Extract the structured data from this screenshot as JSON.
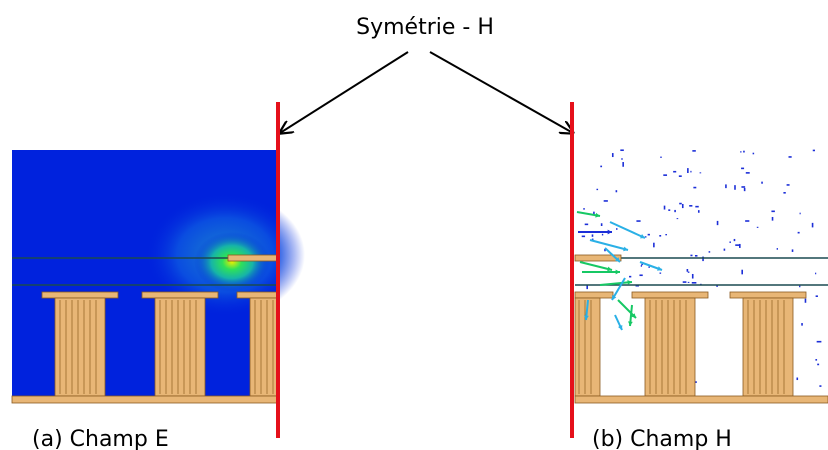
{
  "title": "Symétrie - H",
  "panels": [
    {
      "caption": "(a) Champ E"
    },
    {
      "caption": "(b) Champ H"
    }
  ],
  "colors": {
    "symmetry_plane": "#e5101a",
    "field_background": "#0022dd",
    "pillar_fill": "#e8b676",
    "pillar_stripe": "#a87838",
    "line": "#1a4a50",
    "vector_blue": "#1c2fd8",
    "vector_cyan": "#2ab0e6",
    "vector_green": "#16c864"
  }
}
